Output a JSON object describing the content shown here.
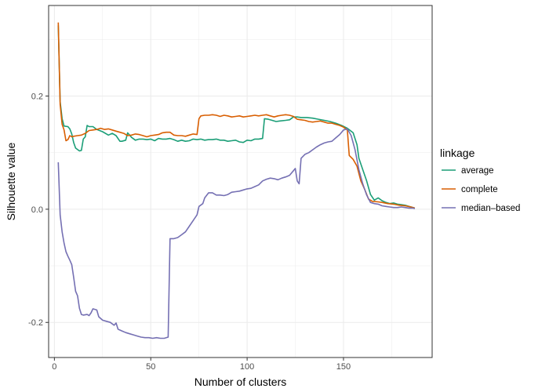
{
  "chart_data": {
    "type": "line",
    "title": "",
    "xlabel": "Number of clusters",
    "ylabel": "Silhouette value",
    "xlim": [
      -3,
      196
    ],
    "ylim": [
      -0.262,
      0.36
    ],
    "x_ticks": [
      0,
      50,
      100,
      150
    ],
    "x_tick_labels": [
      "0",
      "50",
      "100",
      "150"
    ],
    "y_ticks": [
      -0.2,
      0.0,
      0.2
    ],
    "y_tick_labels": [
      "-0.2",
      "0.0",
      "0.2"
    ],
    "grid": true,
    "legend": {
      "title": "linkage",
      "position": "right"
    },
    "series": [
      {
        "name": "average",
        "color": "#1b9e77",
        "points": [
          [
            2,
            0.325
          ],
          [
            3,
            0.19
          ],
          [
            4,
            0.16
          ],
          [
            5,
            0.147
          ],
          [
            7,
            0.146
          ],
          [
            8,
            0.142
          ],
          [
            9,
            0.133
          ],
          [
            10,
            0.118
          ],
          [
            11,
            0.108
          ],
          [
            13,
            0.103
          ],
          [
            14,
            0.104
          ],
          [
            15,
            0.124
          ],
          [
            16,
            0.128
          ],
          [
            17,
            0.148
          ],
          [
            18,
            0.146
          ],
          [
            20,
            0.146
          ],
          [
            22,
            0.141
          ],
          [
            25,
            0.137
          ],
          [
            28,
            0.131
          ],
          [
            30,
            0.134
          ],
          [
            32,
            0.13
          ],
          [
            34,
            0.12
          ],
          [
            35,
            0.12
          ],
          [
            37,
            0.122
          ],
          [
            38,
            0.135
          ],
          [
            40,
            0.127
          ],
          [
            42,
            0.122
          ],
          [
            44,
            0.124
          ],
          [
            46,
            0.124
          ],
          [
            48,
            0.123
          ],
          [
            50,
            0.124
          ],
          [
            52,
            0.121
          ],
          [
            54,
            0.125
          ],
          [
            56,
            0.124
          ],
          [
            58,
            0.124
          ],
          [
            60,
            0.125
          ],
          [
            62,
            0.123
          ],
          [
            64,
            0.12
          ],
          [
            66,
            0.122
          ],
          [
            68,
            0.12
          ],
          [
            70,
            0.121
          ],
          [
            72,
            0.124
          ],
          [
            74,
            0.123
          ],
          [
            76,
            0.124
          ],
          [
            78,
            0.122
          ],
          [
            80,
            0.123
          ],
          [
            82,
            0.123
          ],
          [
            84,
            0.124
          ],
          [
            86,
            0.122
          ],
          [
            88,
            0.122
          ],
          [
            90,
            0.12
          ],
          [
            92,
            0.121
          ],
          [
            94,
            0.122
          ],
          [
            96,
            0.119
          ],
          [
            98,
            0.118
          ],
          [
            100,
            0.122
          ],
          [
            102,
            0.121
          ],
          [
            104,
            0.124
          ],
          [
            106,
            0.124
          ],
          [
            108,
            0.125
          ],
          [
            109,
            0.16
          ],
          [
            111,
            0.159
          ],
          [
            113,
            0.157
          ],
          [
            115,
            0.155
          ],
          [
            117,
            0.156
          ],
          [
            120,
            0.157
          ],
          [
            122,
            0.158
          ],
          [
            124,
            0.163
          ],
          [
            126,
            0.163
          ],
          [
            128,
            0.162
          ],
          [
            131,
            0.162
          ],
          [
            134,
            0.161
          ],
          [
            137,
            0.159
          ],
          [
            140,
            0.157
          ],
          [
            143,
            0.155
          ],
          [
            146,
            0.152
          ],
          [
            149,
            0.148
          ],
          [
            152,
            0.143
          ],
          [
            155,
            0.135
          ],
          [
            157,
            0.114
          ],
          [
            158,
            0.09
          ],
          [
            160,
            0.07
          ],
          [
            162,
            0.05
          ],
          [
            164,
            0.026
          ],
          [
            166,
            0.016
          ],
          [
            168,
            0.02
          ],
          [
            170,
            0.015
          ],
          [
            172,
            0.012
          ],
          [
            174,
            0.01
          ],
          [
            176,
            0.011
          ],
          [
            178,
            0.009
          ],
          [
            180,
            0.008
          ],
          [
            182,
            0.007
          ],
          [
            184,
            0.005
          ],
          [
            186,
            0.003
          ],
          [
            187,
            0.002
          ]
        ]
      },
      {
        "name": "complete",
        "color": "#d95f02",
        "points": [
          [
            2,
            0.33
          ],
          [
            3,
            0.185
          ],
          [
            4,
            0.15
          ],
          [
            5,
            0.14
          ],
          [
            6,
            0.121
          ],
          [
            7,
            0.123
          ],
          [
            8,
            0.13
          ],
          [
            9,
            0.128
          ],
          [
            10,
            0.129
          ],
          [
            12,
            0.13
          ],
          [
            14,
            0.131
          ],
          [
            16,
            0.134
          ],
          [
            18,
            0.139
          ],
          [
            20,
            0.14
          ],
          [
            22,
            0.141
          ],
          [
            24,
            0.143
          ],
          [
            26,
            0.141
          ],
          [
            28,
            0.142
          ],
          [
            30,
            0.14
          ],
          [
            32,
            0.138
          ],
          [
            34,
            0.136
          ],
          [
            36,
            0.134
          ],
          [
            38,
            0.13
          ],
          [
            40,
            0.131
          ],
          [
            42,
            0.133
          ],
          [
            44,
            0.132
          ],
          [
            46,
            0.13
          ],
          [
            48,
            0.128
          ],
          [
            50,
            0.13
          ],
          [
            52,
            0.131
          ],
          [
            54,
            0.132
          ],
          [
            56,
            0.135
          ],
          [
            58,
            0.136
          ],
          [
            60,
            0.136
          ],
          [
            62,
            0.131
          ],
          [
            64,
            0.13
          ],
          [
            66,
            0.13
          ],
          [
            68,
            0.129
          ],
          [
            70,
            0.131
          ],
          [
            72,
            0.133
          ],
          [
            74,
            0.132
          ],
          [
            75,
            0.16
          ],
          [
            76,
            0.165
          ],
          [
            78,
            0.166
          ],
          [
            80,
            0.166
          ],
          [
            82,
            0.167
          ],
          [
            84,
            0.166
          ],
          [
            86,
            0.164
          ],
          [
            88,
            0.166
          ],
          [
            90,
            0.165
          ],
          [
            92,
            0.163
          ],
          [
            94,
            0.164
          ],
          [
            96,
            0.165
          ],
          [
            98,
            0.163
          ],
          [
            100,
            0.164
          ],
          [
            102,
            0.165
          ],
          [
            104,
            0.166
          ],
          [
            106,
            0.165
          ],
          [
            108,
            0.166
          ],
          [
            110,
            0.167
          ],
          [
            112,
            0.165
          ],
          [
            114,
            0.163
          ],
          [
            116,
            0.165
          ],
          [
            118,
            0.166
          ],
          [
            120,
            0.167
          ],
          [
            122,
            0.166
          ],
          [
            124,
            0.164
          ],
          [
            126,
            0.159
          ],
          [
            128,
            0.158
          ],
          [
            130,
            0.157
          ],
          [
            132,
            0.155
          ],
          [
            134,
            0.154
          ],
          [
            136,
            0.155
          ],
          [
            138,
            0.156
          ],
          [
            140,
            0.154
          ],
          [
            142,
            0.152
          ],
          [
            144,
            0.152
          ],
          [
            146,
            0.15
          ],
          [
            148,
            0.148
          ],
          [
            150,
            0.145
          ],
          [
            152,
            0.14
          ],
          [
            153,
            0.095
          ],
          [
            155,
            0.088
          ],
          [
            157,
            0.076
          ],
          [
            159,
            0.05
          ],
          [
            161,
            0.035
          ],
          [
            163,
            0.018
          ],
          [
            165,
            0.014
          ],
          [
            168,
            0.013
          ],
          [
            170,
            0.012
          ],
          [
            173,
            0.01
          ],
          [
            176,
            0.009
          ],
          [
            179,
            0.007
          ],
          [
            182,
            0.006
          ],
          [
            185,
            0.004
          ],
          [
            187,
            0.002
          ]
        ]
      },
      {
        "name": "median–based",
        "color": "#7570b3",
        "points": [
          [
            2,
            0.083
          ],
          [
            3,
            -0.01
          ],
          [
            4,
            -0.04
          ],
          [
            5,
            -0.06
          ],
          [
            6,
            -0.075
          ],
          [
            7,
            -0.083
          ],
          [
            8,
            -0.09
          ],
          [
            9,
            -0.098
          ],
          [
            10,
            -0.12
          ],
          [
            11,
            -0.145
          ],
          [
            12,
            -0.153
          ],
          [
            13,
            -0.175
          ],
          [
            14,
            -0.186
          ],
          [
            15,
            -0.187
          ],
          [
            17,
            -0.186
          ],
          [
            18,
            -0.188
          ],
          [
            19,
            -0.183
          ],
          [
            20,
            -0.176
          ],
          [
            22,
            -0.178
          ],
          [
            23,
            -0.19
          ],
          [
            25,
            -0.196
          ],
          [
            27,
            -0.198
          ],
          [
            29,
            -0.2
          ],
          [
            31,
            -0.205
          ],
          [
            32,
            -0.201
          ],
          [
            33,
            -0.212
          ],
          [
            35,
            -0.215
          ],
          [
            37,
            -0.218
          ],
          [
            39,
            -0.22
          ],
          [
            41,
            -0.222
          ],
          [
            43,
            -0.224
          ],
          [
            45,
            -0.226
          ],
          [
            47,
            -0.227
          ],
          [
            49,
            -0.227
          ],
          [
            51,
            -0.228
          ],
          [
            53,
            -0.227
          ],
          [
            55,
            -0.228
          ],
          [
            57,
            -0.228
          ],
          [
            59,
            -0.226
          ],
          [
            60,
            -0.052
          ],
          [
            62,
            -0.052
          ],
          [
            64,
            -0.05
          ],
          [
            66,
            -0.045
          ],
          [
            68,
            -0.04
          ],
          [
            70,
            -0.03
          ],
          [
            72,
            -0.02
          ],
          [
            74,
            -0.01
          ],
          [
            75,
            0.005
          ],
          [
            77,
            0.01
          ],
          [
            78,
            0.02
          ],
          [
            80,
            0.029
          ],
          [
            82,
            0.029
          ],
          [
            84,
            0.025
          ],
          [
            86,
            0.025
          ],
          [
            88,
            0.024
          ],
          [
            90,
            0.026
          ],
          [
            92,
            0.03
          ],
          [
            94,
            0.031
          ],
          [
            96,
            0.032
          ],
          [
            98,
            0.034
          ],
          [
            100,
            0.036
          ],
          [
            102,
            0.037
          ],
          [
            104,
            0.04
          ],
          [
            106,
            0.043
          ],
          [
            108,
            0.05
          ],
          [
            110,
            0.053
          ],
          [
            112,
            0.055
          ],
          [
            114,
            0.054
          ],
          [
            116,
            0.052
          ],
          [
            118,
            0.055
          ],
          [
            120,
            0.057
          ],
          [
            122,
            0.06
          ],
          [
            124,
            0.068
          ],
          [
            125,
            0.072
          ],
          [
            126,
            0.05
          ],
          [
            127,
            0.045
          ],
          [
            128,
            0.09
          ],
          [
            130,
            0.097
          ],
          [
            132,
            0.1
          ],
          [
            134,
            0.105
          ],
          [
            136,
            0.11
          ],
          [
            138,
            0.114
          ],
          [
            140,
            0.117
          ],
          [
            142,
            0.119
          ],
          [
            144,
            0.12
          ],
          [
            146,
            0.126
          ],
          [
            148,
            0.132
          ],
          [
            150,
            0.14
          ],
          [
            152,
            0.142
          ],
          [
            154,
            0.13
          ],
          [
            156,
            0.105
          ],
          [
            158,
            0.07
          ],
          [
            160,
            0.045
          ],
          [
            162,
            0.025
          ],
          [
            164,
            0.012
          ],
          [
            166,
            0.01
          ],
          [
            168,
            0.009
          ],
          [
            170,
            0.006
          ],
          [
            172,
            0.005
          ],
          [
            174,
            0.004
          ],
          [
            176,
            0.003
          ],
          [
            178,
            0.003
          ],
          [
            180,
            0.004
          ],
          [
            182,
            0.003
          ],
          [
            184,
            0.002
          ],
          [
            186,
            0.002
          ],
          [
            187,
            0.001
          ]
        ]
      }
    ]
  }
}
